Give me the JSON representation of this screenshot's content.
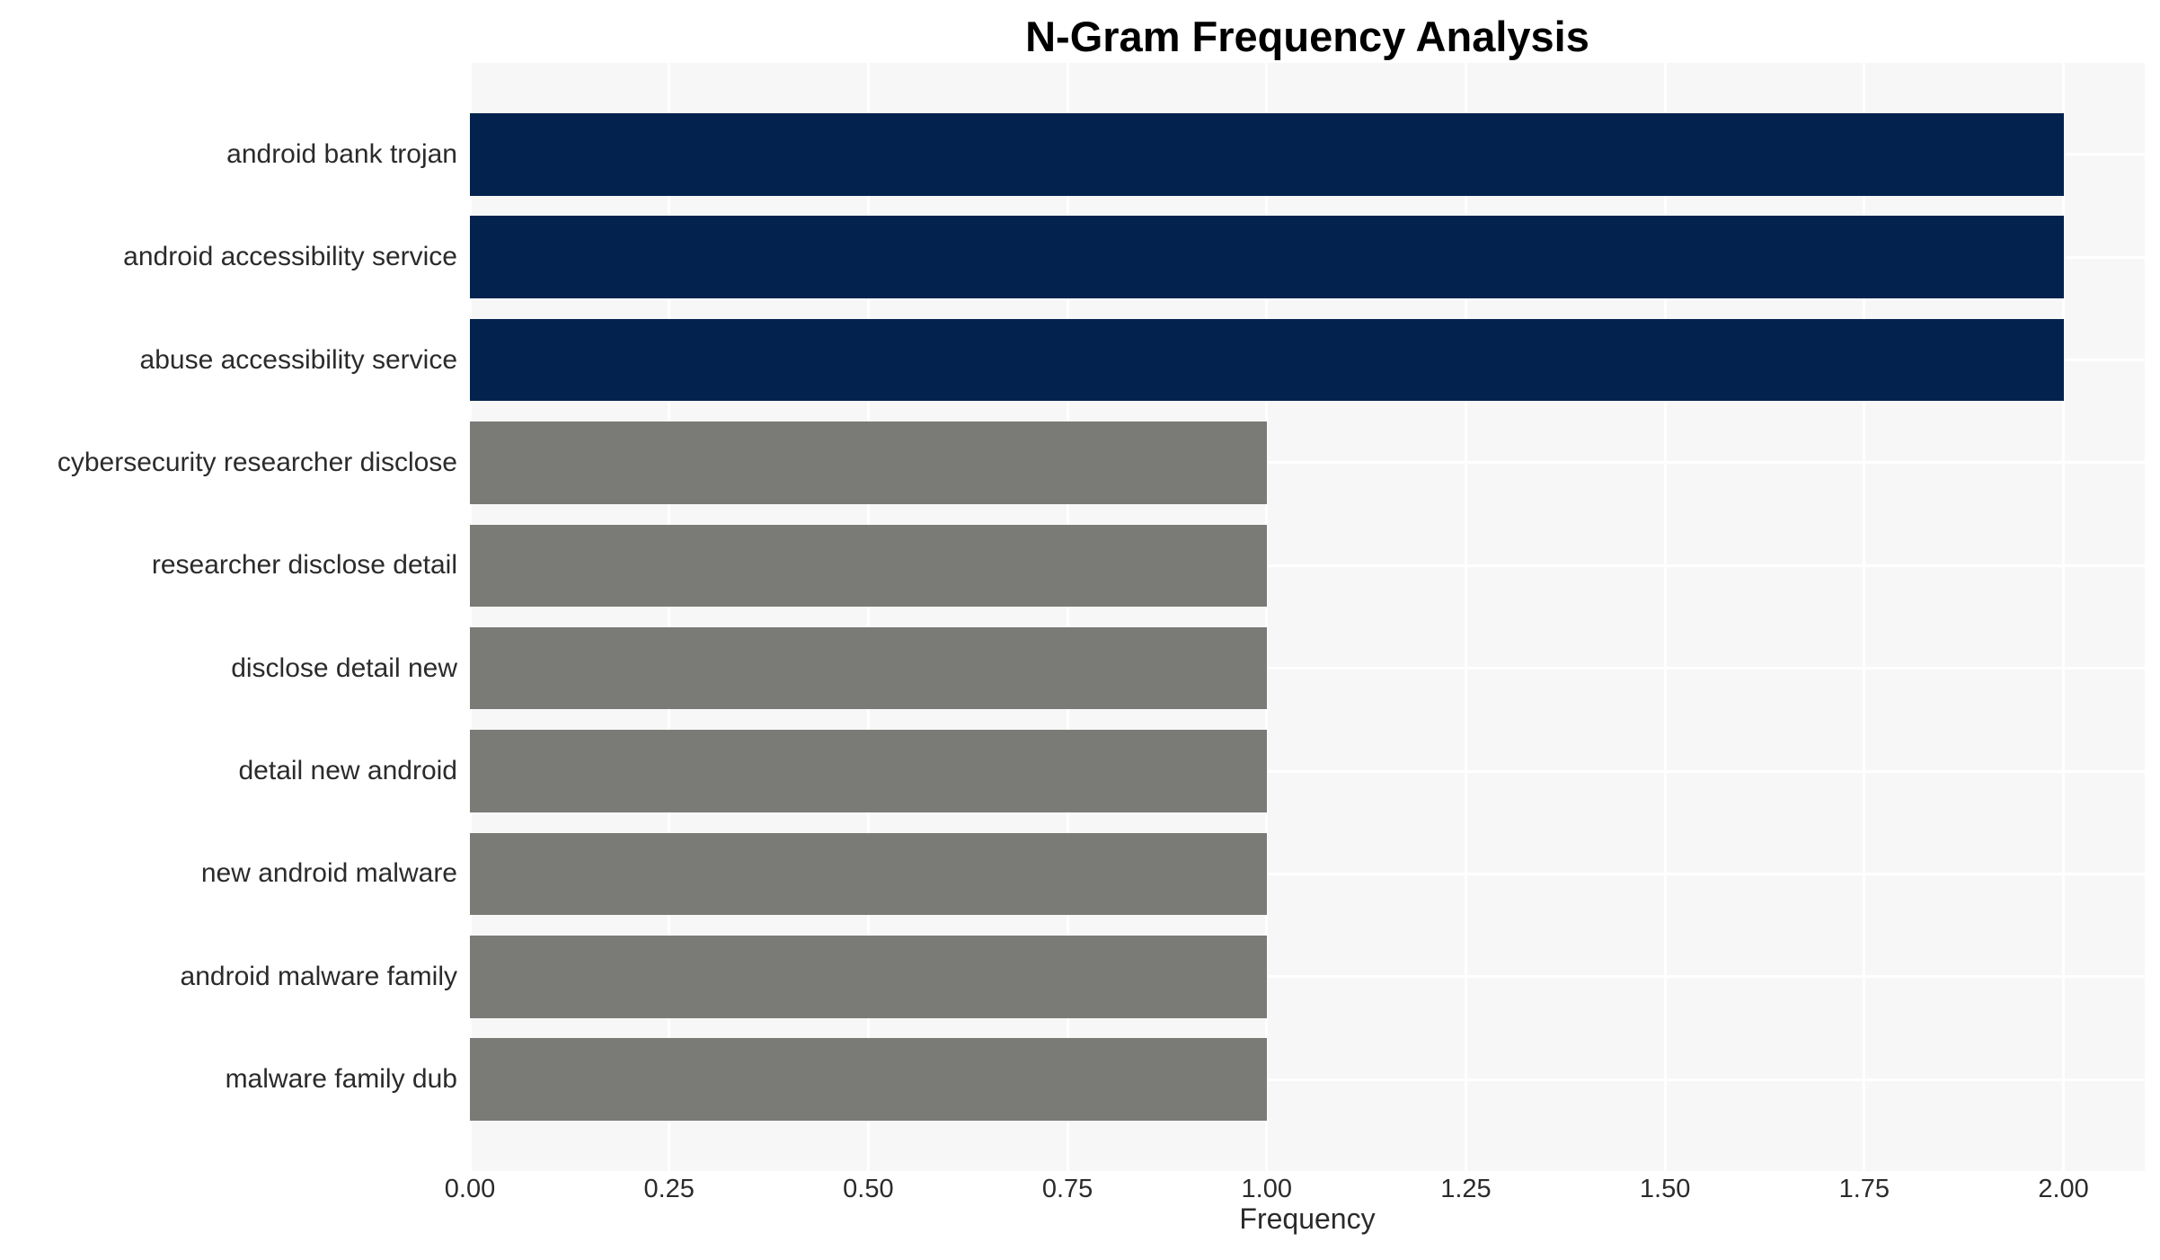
{
  "page": {
    "background": "#ffffff"
  },
  "chart_data": {
    "type": "bar",
    "orientation": "horizontal",
    "title": "N-Gram Frequency Analysis",
    "xlabel": "Frequency",
    "ylabel": "",
    "categories": [
      "android bank trojan",
      "android accessibility service",
      "abuse accessibility service",
      "cybersecurity researcher disclose",
      "researcher disclose detail",
      "disclose detail new",
      "detail new android",
      "new android malware",
      "android malware family",
      "malware family dub"
    ],
    "values": [
      2,
      2,
      2,
      1,
      1,
      1,
      1,
      1,
      1,
      1
    ],
    "bar_colors": [
      "#03234e",
      "#03234e",
      "#03234e",
      "#7a7a76",
      "#7a7a76",
      "#7a7a76",
      "#7a7a76",
      "#7a7a76",
      "#7a7a76",
      "#7a7a76"
    ],
    "xticks": [
      0,
      0.25,
      0.5,
      0.75,
      1.0,
      1.25,
      1.5,
      1.75,
      2.0
    ],
    "xtick_labels": [
      "0.00",
      "0.25",
      "0.50",
      "0.75",
      "1.00",
      "1.25",
      "1.50",
      "1.75",
      "2.00"
    ],
    "xlim": [
      0,
      2.102
    ],
    "ylim_units": [
      -0.89,
      9.89
    ],
    "bar_height_units": 0.8,
    "grid": true,
    "grid_color": "#ffffff",
    "legend": false,
    "colors": {
      "bar_high": "#03234e",
      "bar_low": "#7a7a76",
      "plot_background": "#f7f7f7",
      "page_background": "#ffffff",
      "axis_text": "#2b2b2b",
      "title_text": "#000000"
    }
  }
}
